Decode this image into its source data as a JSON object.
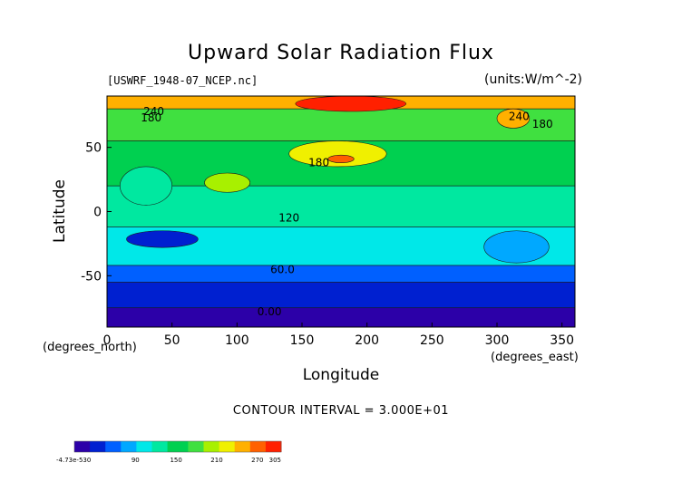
{
  "chart_data": {
    "type": "heatmap",
    "title": "Upward Solar Radiation Flux",
    "file_label": "[USWRF_1948-07_NCEP.nc]",
    "units_label": "(units:W/m^-2)",
    "xlabel": "Longitude",
    "ylabel": "Latitude",
    "x_unit": "(degrees_east)",
    "y_unit": "(degrees_north)",
    "xlim": [
      0,
      360
    ],
    "ylim": [
      -90,
      90
    ],
    "x_ticks": [
      0,
      50,
      100,
      150,
      200,
      250,
      300,
      350
    ],
    "y_ticks": [
      -50,
      0,
      50
    ],
    "contour_interval_text": "CONTOUR INTERVAL = 3.000E+01",
    "contour_labels": [
      {
        "text": "240",
        "x": 36,
        "y": 78
      },
      {
        "text": "180",
        "x": 34,
        "y": 73
      },
      {
        "text": "240",
        "x": 317,
        "y": 74
      },
      {
        "text": "180",
        "x": 335,
        "y": 68
      },
      {
        "text": "180",
        "x": 163,
        "y": 38
      },
      {
        "text": "120",
        "x": 140,
        "y": -5
      },
      {
        "text": "60.0",
        "x": 135,
        "y": -45
      },
      {
        "text": "0.00",
        "x": 125,
        "y": -78
      }
    ],
    "latitude_bands": [
      {
        "lat_min": 80,
        "lat_max": 90,
        "value": 250
      },
      {
        "lat_min": 55,
        "lat_max": 80,
        "value": 170
      },
      {
        "lat_min": 20,
        "lat_max": 55,
        "value": 150
      },
      {
        "lat_min": -12,
        "lat_max": 20,
        "value": 140
      },
      {
        "lat_min": -42,
        "lat_max": -12,
        "value": 95
      },
      {
        "lat_min": -55,
        "lat_max": -42,
        "value": 60
      },
      {
        "lat_min": -75,
        "lat_max": -55,
        "value": 25
      },
      {
        "lat_min": -90,
        "lat_max": -75,
        "value": 0
      }
    ],
    "highlights": [
      {
        "lon_min": 145,
        "lon_max": 230,
        "lat_min": 78,
        "lat_max": 90,
        "value": 290
      },
      {
        "lon_min": 140,
        "lon_max": 215,
        "lat_min": 35,
        "lat_max": 55,
        "value": 215
      },
      {
        "lon_min": 170,
        "lon_max": 190,
        "lat_min": 38,
        "lat_max": 44,
        "value": 265
      },
      {
        "lon_min": 75,
        "lon_max": 110,
        "lat_min": 15,
        "lat_max": 30,
        "value": 205
      },
      {
        "lon_min": 10,
        "lon_max": 50,
        "lat_min": 5,
        "lat_max": 35,
        "value": 120
      },
      {
        "lon_min": 15,
        "lon_max": 70,
        "lat_min": -28,
        "lat_max": -15,
        "value": 40
      },
      {
        "lon_min": 290,
        "lon_max": 340,
        "lat_min": -40,
        "lat_max": -15,
        "value": 75
      },
      {
        "lon_min": 300,
        "lon_max": 325,
        "lat_min": 65,
        "lat_max": 80,
        "value": 250
      }
    ],
    "colorbar": {
      "tick_labels": [
        "-4.73e-530",
        "90",
        "150",
        "210",
        "270",
        "305"
      ],
      "tick_values": [
        0,
        90,
        150,
        210,
        270,
        305
      ],
      "vmin": 0,
      "vmax": 305,
      "colors": [
        "#2c00a8",
        "#0020d0",
        "#0060ff",
        "#00a8ff",
        "#00e8e8",
        "#00e8a0",
        "#00d050",
        "#40e040",
        "#a8f000",
        "#f0f000",
        "#ffb000",
        "#ff6000",
        "#ff2000"
      ]
    }
  }
}
